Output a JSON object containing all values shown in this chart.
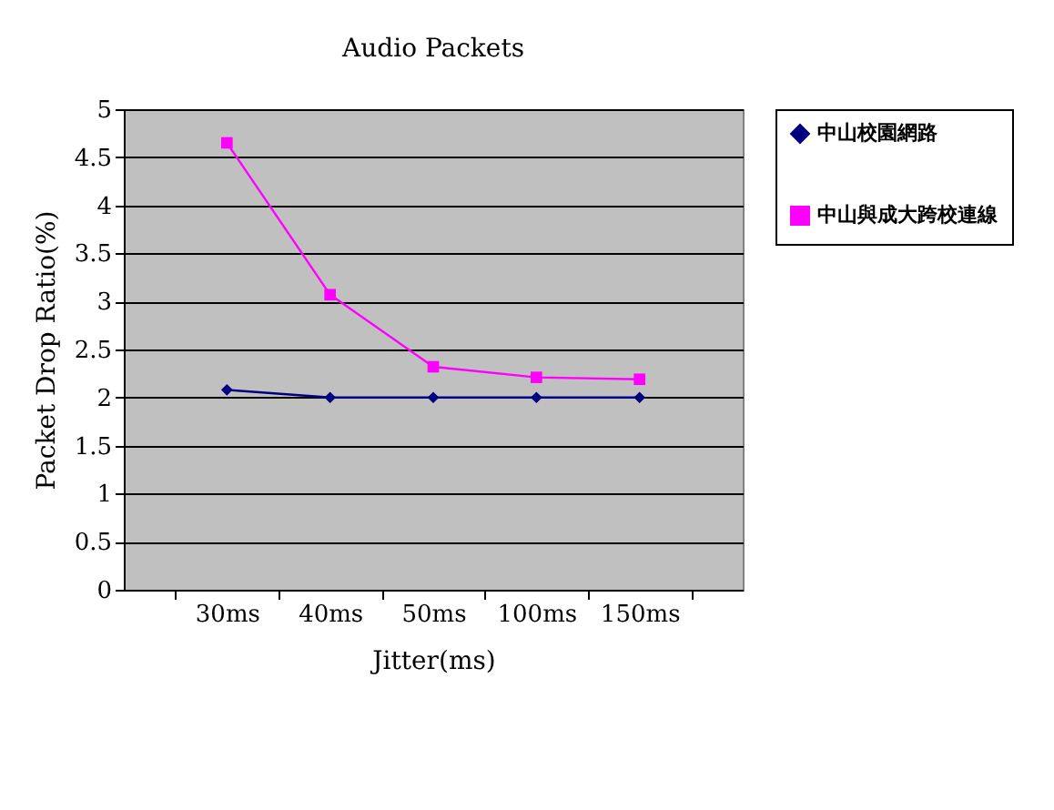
{
  "chart_data": {
    "type": "line",
    "title": "Audio Packets",
    "xlabel": "Jitter(ms)",
    "ylabel": "Packet Drop Ratio(%)",
    "categories": [
      "30ms",
      "40ms",
      "50ms",
      "100ms",
      "150ms"
    ],
    "series": [
      {
        "name": "中山校園網路",
        "color": "#000080",
        "marker": "diamond",
        "values": [
          2.08,
          2.0,
          2.0,
          2.0,
          2.0
        ]
      },
      {
        "name": "中山與成大跨校連線",
        "color": "#ff00ff",
        "marker": "square",
        "values": [
          4.65,
          3.07,
          2.32,
          2.21,
          2.19
        ]
      }
    ],
    "ylim": [
      0,
      5
    ],
    "yticks": [
      0,
      0.5,
      1,
      1.5,
      2,
      2.5,
      3,
      3.5,
      4,
      4.5,
      5
    ],
    "grid": "y",
    "legend": "right"
  }
}
